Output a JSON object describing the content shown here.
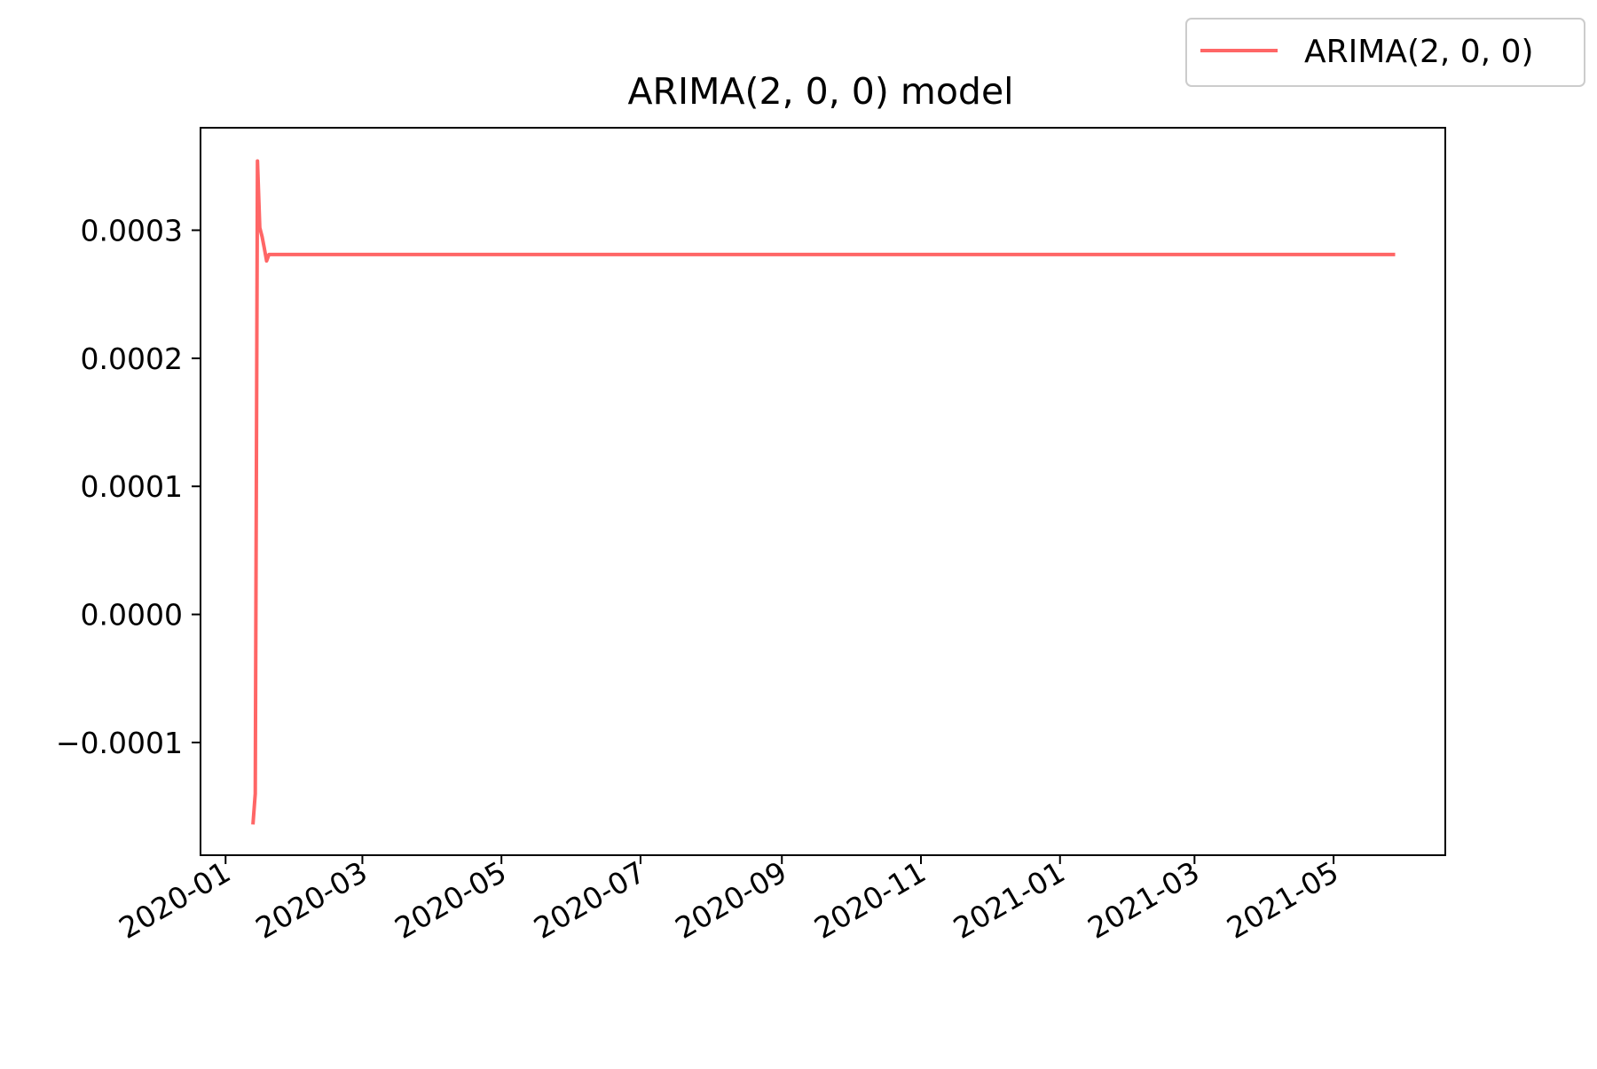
{
  "chart_data": {
    "type": "line",
    "title": "ARIMA(2, 0, 0) model",
    "xlabel": "",
    "ylabel": "",
    "xlim": [
      "2019-12-21",
      "2021-06-19"
    ],
    "ylim": [
      -0.000188,
      0.00038
    ],
    "x_ticks": [
      "2020-01",
      "2020-03",
      "2020-05",
      "2020-07",
      "2020-09",
      "2020-11",
      "2021-01",
      "2021-03",
      "2021-05"
    ],
    "y_ticks": [
      -0.0001,
      0.0,
      0.0001,
      0.0002,
      0.0003
    ],
    "y_tick_labels": [
      "−0.0001",
      "0.0000",
      "0.0001",
      "0.0002",
      "0.0003"
    ],
    "grid": false,
    "legend": {
      "position": "top-right",
      "entries": [
        "ARIMA(2, 0, 0)"
      ]
    },
    "series": [
      {
        "name": "ARIMA(2, 0, 0)",
        "color": "#ff6666",
        "points": [
          [
            "2020-01-13",
            -0.000164
          ],
          [
            "2020-01-14",
            -0.00014
          ],
          [
            "2020-01-15",
            0.000354
          ],
          [
            "2020-01-16",
            0.000302
          ],
          [
            "2020-01-17",
            0.000295
          ],
          [
            "2020-01-18",
            0.000286
          ],
          [
            "2020-01-19",
            0.000276
          ],
          [
            "2020-01-20",
            0.000281
          ],
          [
            "2020-01-21",
            0.000281
          ],
          [
            "2021-05-28",
            0.000281
          ]
        ]
      }
    ]
  }
}
